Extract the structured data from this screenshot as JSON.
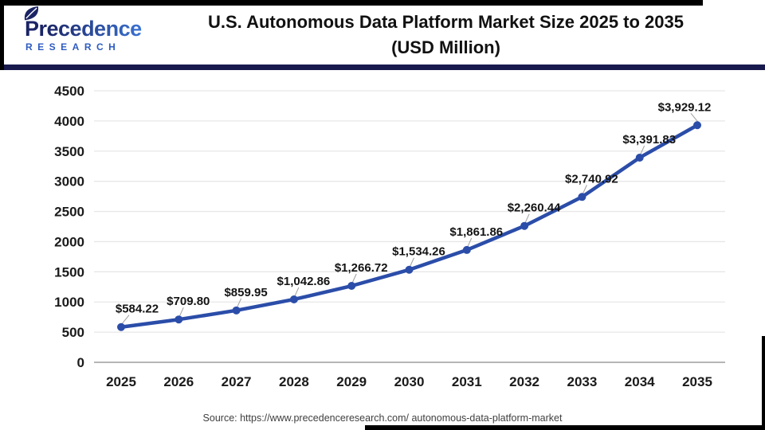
{
  "header": {
    "logo": {
      "name": "Precedence",
      "subtitle": "RESEARCH"
    },
    "title_line1": "U.S. Autonomous Data Platform Market Size 2025 to 2035",
    "title_line2": "(USD Million)"
  },
  "chart_data": {
    "type": "line",
    "title": "U.S. Autonomous Data Platform Market Size 2025 to 2035 (USD Million)",
    "categories": [
      "2025",
      "2026",
      "2027",
      "2028",
      "2029",
      "2030",
      "2031",
      "2032",
      "2033",
      "2034",
      "2035"
    ],
    "values": [
      584.22,
      709.8,
      859.95,
      1042.86,
      1266.72,
      1534.26,
      1861.86,
      2260.44,
      2740.92,
      3391.83,
      3929.12
    ],
    "labels": [
      "$584.22",
      "$709.80",
      "$859.95",
      "$1,042.86",
      "$1,266.72",
      "$1,534.26",
      "$1,861.86",
      "$2,260.44",
      "$2,740.92",
      "$3,391.83",
      "$3,929.12"
    ],
    "xlabel": "",
    "ylabel": "",
    "ylim": [
      0,
      4500
    ],
    "ytick_step": 500,
    "grid": true,
    "legend": "none"
  },
  "footer": {
    "source": "Source: https://www.precedenceresearch.com/ autonomous-data-platform-market"
  },
  "colors": {
    "line": "#2b4da9",
    "grid": "#e7e7e7",
    "axis_line": "#b5b5b5",
    "leader": "#9e9e9e",
    "divider": "#181a4e",
    "logo_navy": "#1b2465",
    "logo_blue": "#3a73d4"
  }
}
